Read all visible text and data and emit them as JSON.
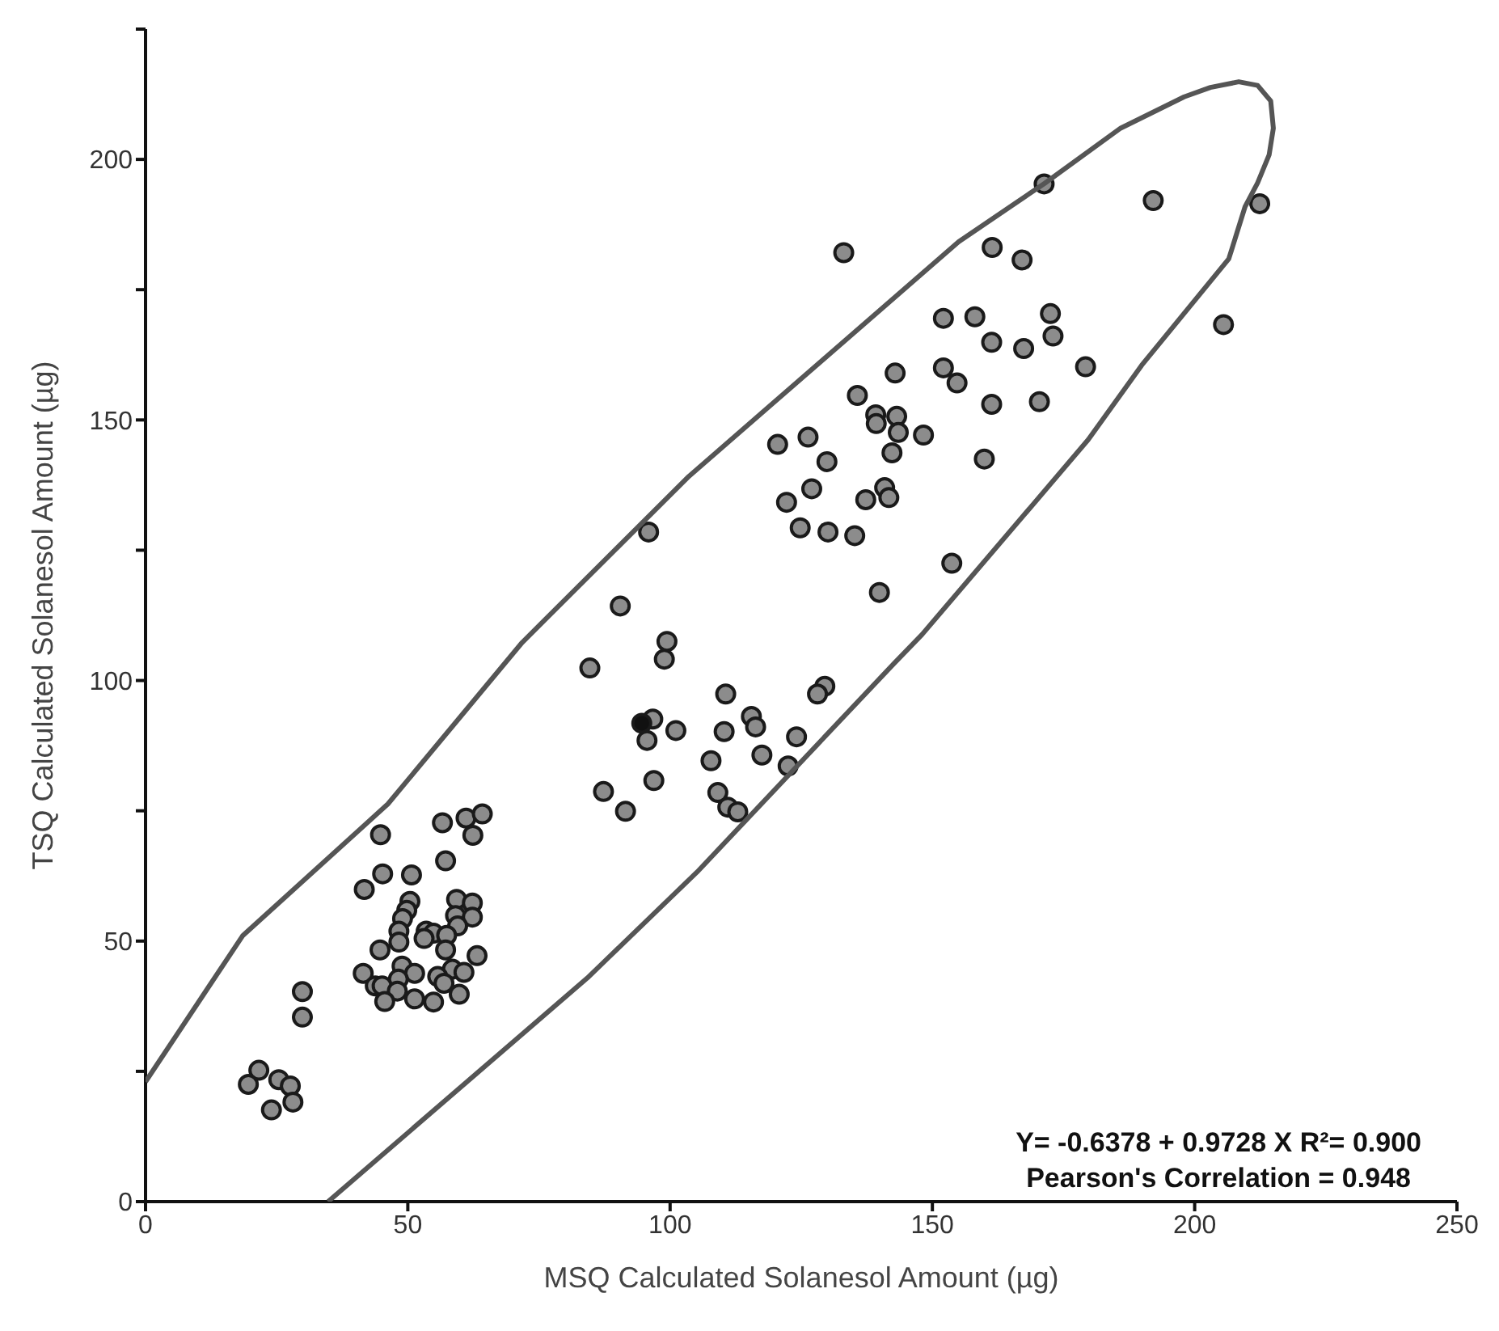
{
  "chart_data": {
    "type": "scatter",
    "xlabel": "MSQ Calculated Solanesol Amount (µg)",
    "ylabel": "TSQ Calculated Solanesol Amount (µg)",
    "xlim": [
      0,
      250
    ],
    "ylim": [
      0,
      225
    ],
    "xticks": [
      0,
      50,
      100,
      150,
      200,
      250
    ],
    "yticks": [
      0,
      {
        "value": 25,
        "label": null
      },
      50,
      {
        "value": 75,
        "label": null
      },
      100,
      {
        "value": 125,
        "label": null
      },
      150,
      {
        "value": 175,
        "label": null
      },
      200,
      {
        "value": 225,
        "label": null
      }
    ],
    "grid": false,
    "annotations": [
      "Y= -0.6378 + 0.9728 X R²= 0.900",
      "Pearson's Correlation = 0.948"
    ],
    "series": [
      {
        "type": "scatter",
        "marker": "circle",
        "color": "#8c8c8c",
        "x": [
          21.6,
          19.6,
          25.4,
          27.6,
          28.1,
          24,
          29.9,
          29.9,
          44.8,
          56.6,
          61.1,
          64.2,
          62.4,
          57.2,
          45.2,
          50.7,
          41.7,
          50.4,
          49.8,
          49,
          48.3,
          48.3,
          59.3,
          62.3,
          59.1,
          62.3,
          59.5,
          53.5,
          54.9,
          53.1,
          57.4,
          57.2,
          44.7,
          63.2,
          48.9,
          58.5,
          41.5,
          51.3,
          60.7,
          48.2,
          55.7,
          43.8,
          45.1,
          56.9,
          48,
          51.3,
          45.6,
          54.9,
          59.8,
          95.9,
          90.5,
          99.4,
          98.9,
          84.7,
          110.6,
          96.7,
          95.6,
          101.1,
          110.3,
          115.5,
          116.3,
          129.5,
          128.1,
          124.1,
          117.5,
          107.8,
          122.5,
          96.9,
          87.3,
          109.1,
          91.5,
          111,
          112.9,
          122.2,
          127,
          124.8,
          130.1,
          135.2,
          139.9,
          137.3,
          140.9,
          133.1,
          161.4,
          167.1,
          152.1,
          158.1,
          172.5,
          173,
          161.3,
          167.4,
          179.2,
          152.1,
          154.7,
          142.9,
          135.7,
          161.3,
          170.4,
          139.2,
          143.2,
          139.3,
          143.5,
          148.3,
          120.5,
          126.3,
          142.3,
          129.9,
          159.9,
          141.7,
          153.7,
          171.3,
          192.1,
          212.4,
          205.5
        ],
        "values": [
          25.2,
          22.5,
          23.4,
          22.2,
          19.1,
          17.6,
          40.3,
          35.4,
          70.4,
          72.7,
          73.6,
          74.4,
          70.3,
          65.4,
          62.9,
          62.7,
          59.9,
          57.6,
          55.9,
          54.3,
          51.9,
          49.8,
          58,
          57.3,
          54.9,
          54.6,
          52.9,
          51.9,
          51.5,
          50.5,
          51.1,
          48.3,
          48.3,
          47.2,
          45.2,
          44.6,
          43.8,
          43.8,
          44,
          42.7,
          43.2,
          41.4,
          41.4,
          41.9,
          40.4,
          38.9,
          38.4,
          38.3,
          39.8,
          128.5,
          114.3,
          107.5,
          104.1,
          102.4,
          97.4,
          92.6,
          88.5,
          90.4,
          90.2,
          93.1,
          91.1,
          98.9,
          97.4,
          89.2,
          85.7,
          84.6,
          83.6,
          80.8,
          78.7,
          78.5,
          74.9,
          75.7,
          74.8,
          134.2,
          136.8,
          129.3,
          128.5,
          127.8,
          116.9,
          134.7,
          137,
          182.1,
          183.1,
          180.7,
          169.5,
          169.8,
          170.4,
          166.1,
          164.9,
          163.7,
          160.2,
          160,
          157.1,
          159,
          154.7,
          153,
          153.5,
          151,
          150.7,
          149.3,
          147.6,
          147.1,
          145.3,
          146.7,
          143.7,
          142,
          142.5,
          135.1,
          122.5,
          195.3,
          192.1,
          191.5,
          168.3
        ]
      },
      {
        "type": "scatter",
        "marker": "circle",
        "color": "#111111",
        "x": [
          94.6
        ],
        "values": [
          91.8
        ]
      },
      {
        "type": "line",
        "marker": "none",
        "color": "#555555",
        "x": [
          0,
          18.5,
          46.2,
          71.8,
          103.6,
          155,
          171.4,
          185.9,
          198,
          203,
          208.4,
          212,
          214.5,
          215,
          214.2,
          212,
          209.6,
          206.5,
          189.9,
          179.7,
          148,
          142.7,
          105.1,
          84.2,
          34.8
        ],
        "values": [
          23,
          51,
          76.3,
          107.3,
          139.2,
          184.2,
          195.4,
          206,
          212,
          213.8,
          214.9,
          214.2,
          211.2,
          206,
          200.9,
          195.5,
          190.9,
          180.9,
          160.5,
          146.2,
          108.8,
          103.3,
          63.2,
          42.9,
          0
        ]
      }
    ]
  }
}
